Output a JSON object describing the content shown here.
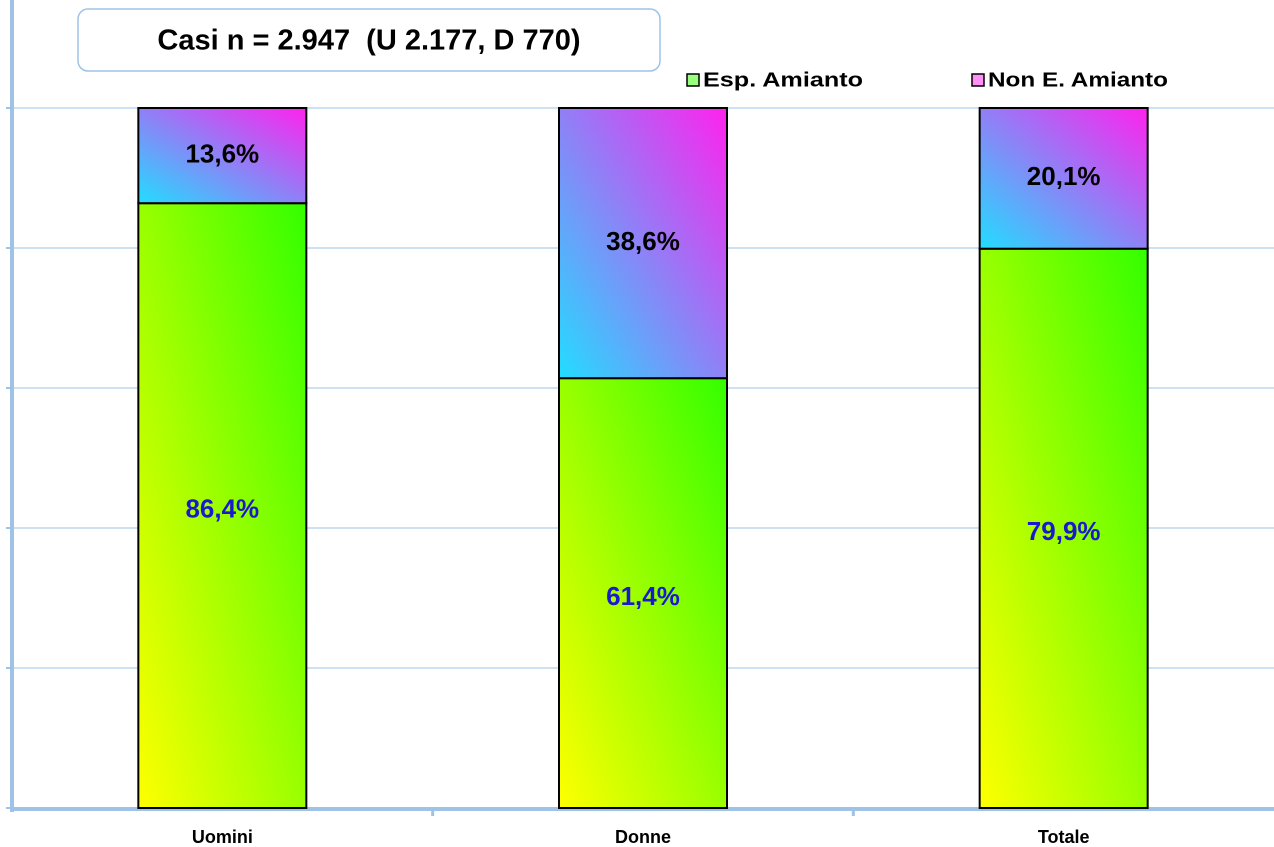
{
  "chart_data": {
    "type": "stacked-bar",
    "title": "Casi n = 2.947  (U 2.177, D 770)",
    "categories": [
      "Uomini",
      "Donne",
      "Totale"
    ],
    "series": [
      {
        "name": "Esp. Amianto",
        "color": "#33ff00",
        "values": [
          86.4,
          61.4,
          79.9
        ],
        "value_labels": [
          "86,4%",
          "61,4%",
          "79,9%"
        ]
      },
      {
        "name": "Non E. Amianto",
        "color": "#ff22ee",
        "values": [
          13.6,
          38.6,
          20.1
        ],
        "value_labels": [
          "13,6%",
          "38,6%",
          "20,1%"
        ]
      }
    ],
    "ylim": [
      0,
      100
    ],
    "yticks": [
      0,
      20,
      40,
      60,
      80,
      100
    ],
    "grid": true
  }
}
